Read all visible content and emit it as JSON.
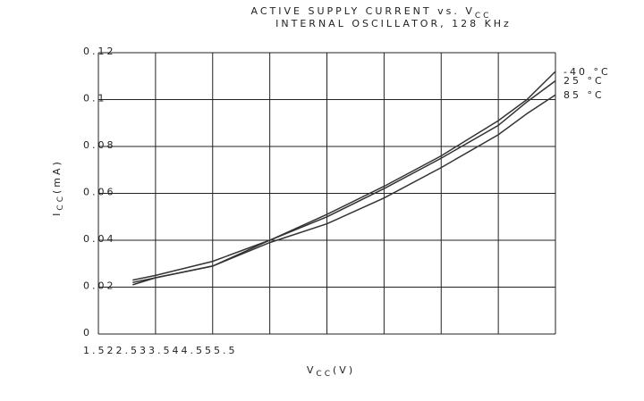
{
  "chart_data": {
    "type": "line",
    "title": "ACTIVE SUPPLY CURRENT vs. V",
    "title_sub": "CC",
    "subtitle": "INTERNAL OSCILLATOR, 128 KHz",
    "x_label": "V",
    "x_label_sub": "CC",
    "x_label_unit": "(V)",
    "y_label": "I",
    "y_label_sub": "CC",
    "y_label_unit": "(mA)",
    "x": [
      1.8,
      2,
      2.5,
      3,
      3.5,
      4,
      4.5,
      5,
      5.25,
      5.5
    ],
    "series": [
      {
        "name": "-40 °C",
        "color": "#333333",
        "values": [
          0.022,
          0.024,
          0.029,
          0.04,
          0.051,
          0.063,
          0.076,
          0.091,
          0.1,
          0.112
        ]
      },
      {
        "name": "25 °C",
        "color": "#333333",
        "values": [
          0.023,
          0.025,
          0.031,
          0.04,
          0.05,
          0.062,
          0.075,
          0.089,
          0.099,
          0.108
        ]
      },
      {
        "name": "85 °C",
        "color": "#333333",
        "values": [
          0.021,
          0.024,
          0.029,
          0.039,
          0.047,
          0.058,
          0.071,
          0.085,
          0.094,
          0.102
        ]
      }
    ],
    "xlim": [
      1.5,
      5.5
    ],
    "xticks": [
      1.5,
      2,
      2.5,
      3,
      3.5,
      4,
      4.5,
      5,
      5.5
    ],
    "ylim": [
      0,
      0.12
    ],
    "yticks": [
      0,
      0.02,
      0.04,
      0.06,
      0.08,
      0.1,
      0.12
    ],
    "grid": true
  }
}
